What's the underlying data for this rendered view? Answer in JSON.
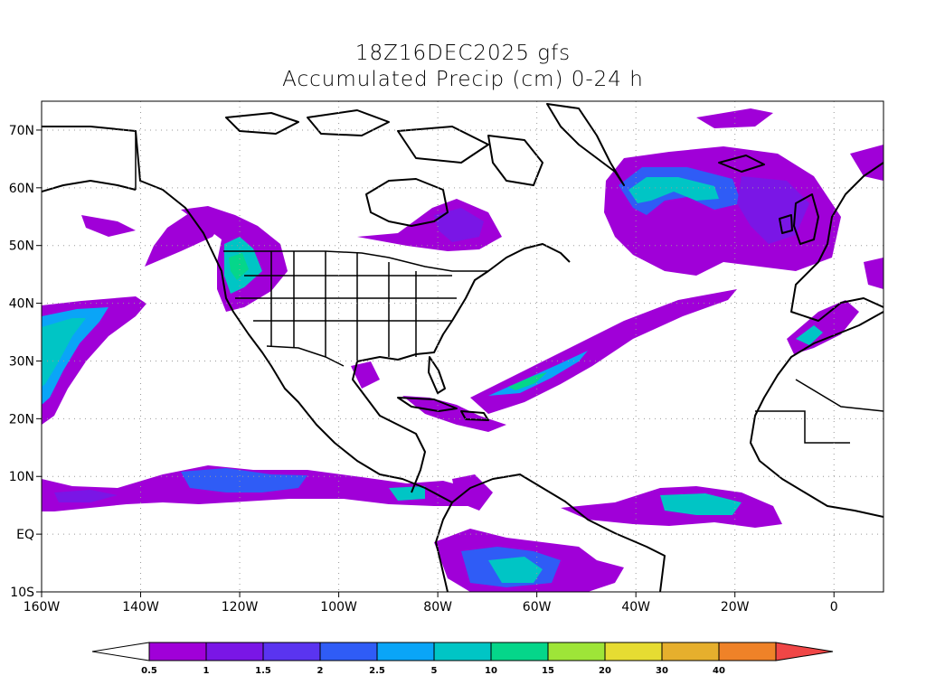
{
  "title": {
    "line1": "18Z16DEC2025 gfs",
    "line2": "Accumulated Precip (cm) 0-24 h"
  },
  "map": {
    "lon_range": [
      -160,
      10
    ],
    "lat_range": [
      -10,
      75
    ],
    "lon_ticks": [
      {
        "value": -160,
        "label": "160W"
      },
      {
        "value": -140,
        "label": "140W"
      },
      {
        "value": -120,
        "label": "120W"
      },
      {
        "value": -100,
        "label": "100W"
      },
      {
        "value": -80,
        "label": "80W"
      },
      {
        "value": -60,
        "label": "60W"
      },
      {
        "value": -40,
        "label": "40W"
      },
      {
        "value": -20,
        "label": "20W"
      },
      {
        "value": 0,
        "label": "0"
      }
    ],
    "lat_ticks": [
      {
        "value": 70,
        "label": "70N"
      },
      {
        "value": 60,
        "label": "60N"
      },
      {
        "value": 50,
        "label": "50N"
      },
      {
        "value": 40,
        "label": "40N"
      },
      {
        "value": 30,
        "label": "30N"
      },
      {
        "value": 20,
        "label": "20N"
      },
      {
        "value": 10,
        "label": "10N"
      },
      {
        "value": 0,
        "label": "EQ"
      },
      {
        "value": -10,
        "label": "10S"
      }
    ],
    "grid": true
  },
  "colorbar": {
    "levels": [
      "0.5",
      "1",
      "1.5",
      "2",
      "2.5",
      "5",
      "10",
      "15",
      "20",
      "30",
      "40"
    ],
    "colors": [
      "#ffffff",
      "#a000d8",
      "#7a16e6",
      "#5a34f0",
      "#2f5cf6",
      "#0aa5f7",
      "#00c5c5",
      "#05d68a",
      "#9ee538",
      "#e6dc32",
      "#e6af2d",
      "#ef8228",
      "#f04646"
    ]
  },
  "precip_colors": {
    "p1": "#a000d8",
    "p2": "#7a16e6",
    "p3": "#5a34f0",
    "p4": "#2f5cf6",
    "p5": "#0aa5f7",
    "p6": "#00c5c5",
    "p7": "#05d68a",
    "p8": "#9ee538"
  }
}
